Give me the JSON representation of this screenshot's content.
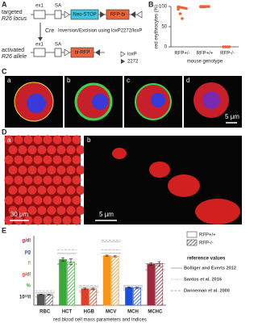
{
  "figure": {
    "panel_labels": [
      "A",
      "B",
      "C",
      "D",
      "E"
    ],
    "schematic": {
      "targeted_label": "targeted",
      "targeted_locus": "R26 locus",
      "activated_label": "activated",
      "activated_allele": "R26 allele",
      "ex1": "ex1",
      "sa": "SA",
      "neo_stop": "Neo-STOP",
      "rfp_bi": "RFP-bi",
      "bi_rfp": "bi-RFP",
      "cre": "Cre",
      "inversion": "Inversion/Excision using loxP2272/loxP",
      "legend_loxp": "loxP",
      "legend_2272": "2272"
    },
    "micrographs": {
      "c_panels": [
        "a",
        "b",
        "c",
        "d"
      ],
      "c_scale": "5 µm",
      "d_panels": [
        "a",
        "b"
      ],
      "d_scale_a": "30 µm",
      "d_scale_b": "5 µm"
    }
  },
  "chart_data": [
    {
      "type": "dot",
      "categories": [
        "RFP+/-",
        "RFP+/+",
        "RFP-/-"
      ],
      "values": [
        [
          99,
          98,
          97,
          96,
          95,
          93,
          82,
          70
        ],
        [
          100,
          100,
          100,
          100,
          100,
          99,
          99,
          99
        ],
        [
          0,
          0,
          0,
          0
        ]
      ],
      "color": "#e8623a",
      "ylabel": "red erythrocytes (%)",
      "xlabel": "mouse genotype",
      "ylim": [
        0,
        100
      ],
      "yticks": [
        0,
        50,
        100
      ]
    },
    {
      "type": "bar",
      "categories": [
        "RBC",
        "HCT",
        "HGB",
        "MCV",
        "MCH",
        "MCHC"
      ],
      "colors": [
        "#555555",
        "#3aa83a",
        "#e0402a",
        "#f7941d",
        "#1f4fd8",
        "#a0283c"
      ],
      "series": [
        {
          "name": "RFP+/+",
          "pattern": "solid",
          "values": [
            9.3,
            39.5,
            14.2,
            42.8,
            15.3,
            35.5
          ],
          "errors": [
            0.3,
            1.5,
            0.6,
            0.5,
            0.5,
            1.2
          ]
        },
        {
          "name": "RFP-/-",
          "pattern": "hatched",
          "values": [
            9.1,
            37.5,
            14,
            42.3,
            15.1,
            35.8
          ],
          "errors": [
            0.4,
            2.5,
            0.7,
            0.6,
            0.6,
            1.8
          ]
        }
      ],
      "ylim": [
        0,
        60
      ],
      "unit_labels": [
        {
          "label": "g/dl",
          "color": "#a0283c"
        },
        {
          "label": "pg",
          "color": "#1f4fd8"
        },
        {
          "label": "fl",
          "color": "#f7941d"
        },
        {
          "label": "g/dl",
          "color": "#e0402a"
        },
        {
          "label": "%",
          "color": "#3aa83a"
        },
        {
          "label": "10¹²/l",
          "color": "#222222"
        }
      ],
      "xlabel": "red blood cell mass parameters and indices",
      "reference_title": "reference values",
      "reference_color": "#999999",
      "references": [
        {
          "name": "Bolliger and Everts 2012",
          "dash": "solid",
          "ranges": [
            [
              7,
              11
            ],
            [
              35,
              45
            ],
            [
              11,
              16
            ],
            [
              45,
              55
            ],
            [
              14,
              17
            ],
            [
              31,
              36
            ]
          ]
        },
        {
          "name": "Santos et al. 2016",
          "dash": "dotted",
          "ranges": [
            [
              8,
              10
            ],
            [
              39,
              44
            ],
            [
              13,
              15
            ],
            [
              42,
              48
            ],
            [
              14,
              16
            ],
            [
              30,
              34
            ]
          ]
        },
        {
          "name": "Danneman et al. 2000",
          "dash": "dashed",
          "ranges": [
            [
              7,
              12.5
            ],
            [
              36,
              48
            ],
            [
              12,
              17
            ],
            [
              48,
              56
            ],
            [
              13,
              16
            ],
            [
              30,
              36
            ]
          ]
        }
      ]
    }
  ]
}
